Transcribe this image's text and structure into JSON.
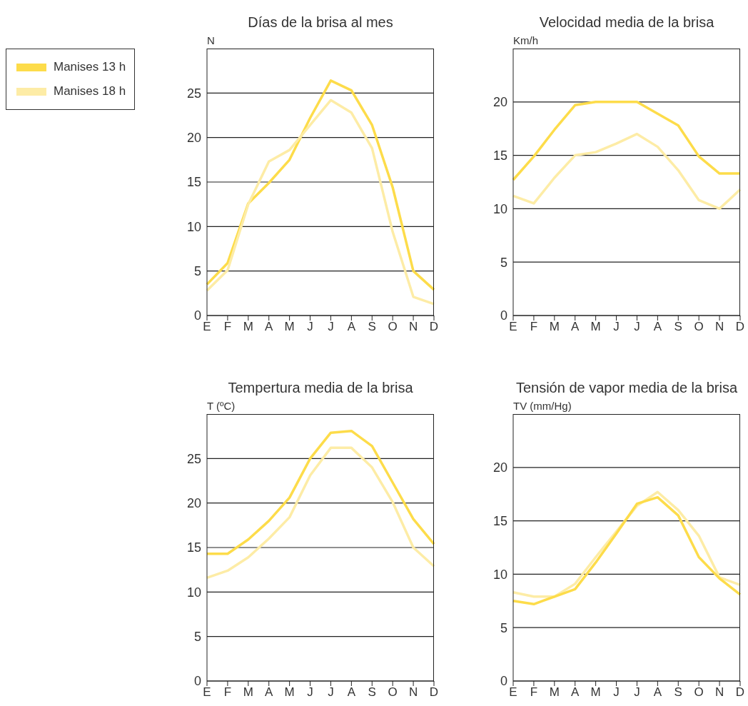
{
  "chart_data": [
    {
      "type": "line",
      "title": "Días de la brisa al mes",
      "ylabel": "N",
      "categories": [
        "E",
        "F",
        "M",
        "A",
        "M",
        "J",
        "J",
        "A",
        "S",
        "O",
        "N",
        "D"
      ],
      "ylim": [
        0,
        30
      ],
      "yticks": [
        0,
        5,
        10,
        15,
        20,
        25
      ],
      "grid": "y",
      "legend": "left",
      "line_style": "solid",
      "series": [
        {
          "name": "Manises 13 h",
          "color": "#fddc4a",
          "values": [
            3.5,
            5.9,
            12.6,
            14.9,
            17.5,
            22.2,
            26.4,
            25.3,
            21.4,
            14.4,
            5.0,
            2.9
          ]
        },
        {
          "name": "Manises 18 h",
          "color": "#fdeca6",
          "values": [
            2.8,
            5.1,
            12.5,
            17.3,
            18.6,
            21.4,
            24.2,
            22.8,
            18.8,
            9.4,
            2.1,
            1.3
          ]
        }
      ]
    },
    {
      "type": "line",
      "title": "Velocidad media de la brisa",
      "ylabel": "Km/h",
      "categories": [
        "E",
        "F",
        "M",
        "A",
        "M",
        "J",
        "J",
        "A",
        "S",
        "O",
        "N",
        "D"
      ],
      "ylim": [
        0,
        25
      ],
      "yticks": [
        0,
        5,
        10,
        15,
        20
      ],
      "grid": "y",
      "line_style": "solid",
      "series": [
        {
          "color": "#fddc4a",
          "values": [
            12.7,
            14.9,
            17.4,
            19.7,
            20.0,
            20.0,
            20.0,
            18.9,
            17.8,
            14.9,
            13.3,
            13.3
          ]
        },
        {
          "color": "#fdeca6",
          "values": [
            11.2,
            10.5,
            12.9,
            15.0,
            15.3,
            16.1,
            17.0,
            15.8,
            13.6,
            10.8,
            10.0,
            11.8
          ]
        }
      ]
    },
    {
      "type": "line",
      "title": "Tempertura media de la brisa",
      "ylabel": "T (ºC)",
      "categories": [
        "E",
        "F",
        "M",
        "A",
        "M",
        "J",
        "J",
        "A",
        "S",
        "O",
        "N",
        "D"
      ],
      "ylim": [
        0,
        30
      ],
      "yticks": [
        0,
        5,
        10,
        15,
        20,
        25
      ],
      "grid": "y",
      "line_style": "solid",
      "series": [
        {
          "color": "#fddc4a",
          "values": [
            14.3,
            14.3,
            15.9,
            18.0,
            20.6,
            25.0,
            27.9,
            28.1,
            26.4,
            22.3,
            18.2,
            15.4
          ]
        },
        {
          "color": "#fdeca6",
          "values": [
            11.6,
            12.4,
            13.9,
            16.0,
            18.4,
            23.1,
            26.2,
            26.2,
            24.0,
            20.1,
            15.0,
            12.9
          ]
        }
      ]
    },
    {
      "type": "line",
      "title": "Tensión de vapor media de la brisa",
      "ylabel": "TV (mm/Hg)",
      "categories": [
        "E",
        "F",
        "M",
        "A",
        "M",
        "J",
        "J",
        "A",
        "S",
        "O",
        "N",
        "D"
      ],
      "ylim": [
        0,
        25
      ],
      "yticks": [
        0,
        5,
        10,
        15,
        20
      ],
      "grid": "y",
      "line_style": "solid",
      "series": [
        {
          "color": "#fdeca6",
          "values": [
            8.3,
            7.9,
            7.9,
            9.1,
            11.6,
            14.0,
            16.4,
            17.7,
            16.0,
            13.6,
            9.7,
            9.0
          ]
        },
        {
          "color": "#fddc4a",
          "values": [
            7.5,
            7.2,
            7.9,
            8.6,
            11.1,
            13.8,
            16.6,
            17.2,
            15.5,
            11.6,
            9.6,
            8.1
          ]
        }
      ]
    }
  ]
}
